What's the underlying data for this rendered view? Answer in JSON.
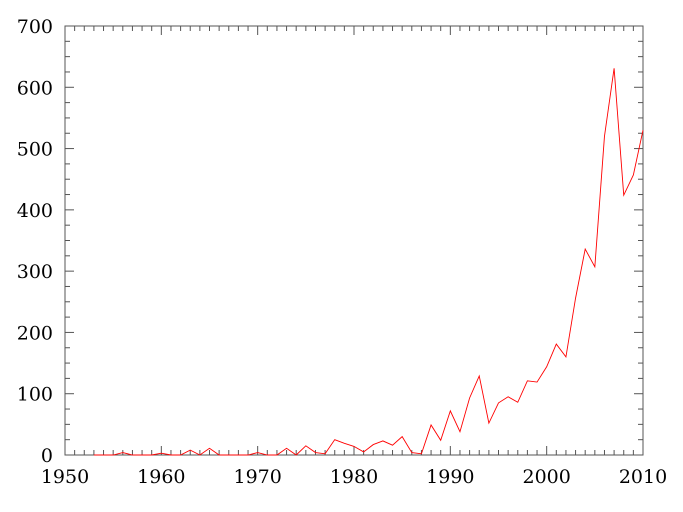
{
  "chart_data": {
    "type": "line",
    "title": "",
    "xlabel": "",
    "ylabel": "",
    "xlim": [
      1950,
      2010
    ],
    "ylim": [
      0,
      700
    ],
    "x_ticks": [
      "1950",
      "1960",
      "1970",
      "1980",
      "1990",
      "2000",
      "2010"
    ],
    "y_ticks": [
      "0",
      "100",
      "200",
      "300",
      "400",
      "500",
      "600",
      "700"
    ],
    "grid": false,
    "line_color": "#ff0000",
    "series": [
      {
        "x": [
          1953,
          1954,
          1955,
          1956,
          1957,
          1958,
          1959,
          1960,
          1961,
          1962,
          1963,
          1964,
          1965,
          1966,
          1967,
          1968,
          1969,
          1970,
          1971,
          1972,
          1973,
          1974,
          1975,
          1976,
          1977,
          1978,
          1979,
          1980,
          1981,
          1982,
          1983,
          1984,
          1985,
          1986,
          1987,
          1988,
          1989,
          1990,
          1991,
          1992,
          1993,
          1994,
          1995,
          1996,
          1997,
          1998,
          1999,
          2000,
          2001,
          2002,
          2003,
          2004,
          2005,
          2006,
          2007,
          2008,
          2009,
          2010
        ],
        "values": [
          0,
          0,
          0,
          4,
          0,
          0,
          0,
          3,
          0,
          0,
          8,
          0,
          11,
          0,
          0,
          0,
          0,
          4,
          0,
          0,
          11,
          0,
          15,
          4,
          2,
          25,
          19,
          14,
          5,
          17,
          23,
          16,
          30,
          4,
          2,
          49,
          24,
          72,
          38,
          93,
          129,
          52,
          85,
          95,
          86,
          121,
          119,
          144,
          181,
          160,
          256,
          336,
          307,
          520,
          631,
          424,
          457,
          530
        ]
      }
    ]
  }
}
